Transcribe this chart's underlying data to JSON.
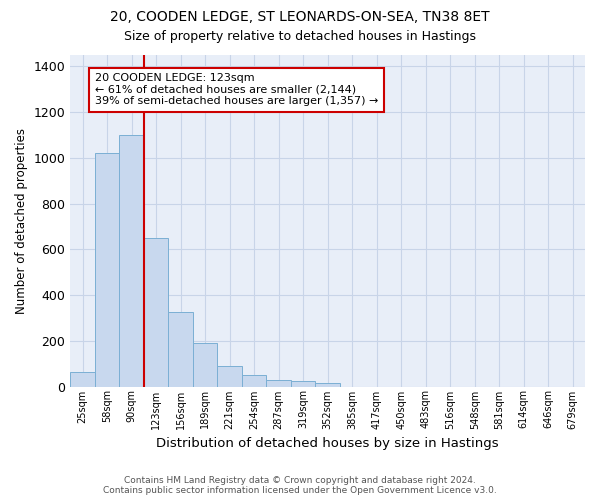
{
  "title_line1": "20, COODEN LEDGE, ST LEONARDS-ON-SEA, TN38 8ET",
  "title_line2": "Size of property relative to detached houses in Hastings",
  "xlabel": "Distribution of detached houses by size in Hastings",
  "ylabel": "Number of detached properties",
  "categories": [
    "25sqm",
    "58sqm",
    "90sqm",
    "123sqm",
    "156sqm",
    "189sqm",
    "221sqm",
    "254sqm",
    "287sqm",
    "319sqm",
    "352sqm",
    "385sqm",
    "417sqm",
    "450sqm",
    "483sqm",
    "516sqm",
    "548sqm",
    "581sqm",
    "614sqm",
    "646sqm",
    "679sqm"
  ],
  "values": [
    65,
    1020,
    1100,
    650,
    325,
    190,
    90,
    50,
    30,
    25,
    15,
    0,
    0,
    0,
    0,
    0,
    0,
    0,
    0,
    0,
    0
  ],
  "bar_color": "#c8d8ee",
  "bar_edge_color": "#7bafd4",
  "red_line_index": 3,
  "annotation_text": "20 COODEN LEDGE: 123sqm\n← 61% of detached houses are smaller (2,144)\n39% of semi-detached houses are larger (1,357) →",
  "annotation_box_color": "#ffffff",
  "annotation_edge_color": "#cc0000",
  "red_line_color": "#cc0000",
  "ylim": [
    0,
    1450
  ],
  "yticks": [
    0,
    200,
    400,
    600,
    800,
    1000,
    1200,
    1400
  ],
  "grid_color": "#c8d4e8",
  "background_color": "#e8eef8",
  "title1_fontsize": 10,
  "title2_fontsize": 9,
  "footer_line1": "Contains HM Land Registry data © Crown copyright and database right 2024.",
  "footer_line2": "Contains public sector information licensed under the Open Government Licence v3.0."
}
